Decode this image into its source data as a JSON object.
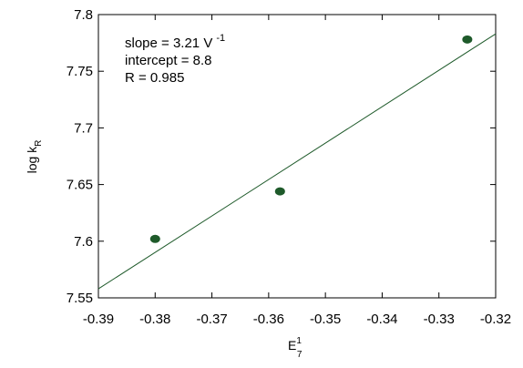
{
  "chart_data": {
    "type": "scatter",
    "title": "",
    "xlabel": {
      "main": "E",
      "sup": "1",
      "sub": "7"
    },
    "ylabel": {
      "main": "log k",
      "sub": "R"
    },
    "xlim": [
      -0.39,
      -0.32
    ],
    "ylim": [
      7.55,
      7.8
    ],
    "x_ticks": [
      -0.39,
      -0.38,
      -0.37,
      -0.36,
      -0.35,
      -0.34,
      -0.33,
      -0.32
    ],
    "x_tick_labels": [
      "-0.39",
      "-0.38",
      "-0.37",
      "-0.36",
      "-0.35",
      "-0.34",
      "-0.33",
      "-0.32"
    ],
    "y_ticks": [
      7.55,
      7.6,
      7.65,
      7.7,
      7.75,
      7.8
    ],
    "y_tick_labels": [
      "7.55",
      "7.6",
      "7.65",
      "7.7",
      "7.75",
      "7.8"
    ],
    "points": [
      {
        "x": -0.38,
        "y": 7.602
      },
      {
        "x": -0.358,
        "y": 7.644
      },
      {
        "x": -0.325,
        "y": 7.778
      }
    ],
    "fit_line": [
      {
        "x": -0.39,
        "y": 7.558
      },
      {
        "x": -0.32,
        "y": 7.783
      }
    ],
    "annotations": [
      {
        "text": "slope = 3.21 V",
        "sup": "-1"
      },
      {
        "text": "intercept = 8.8"
      },
      {
        "text": "R = 0.985"
      }
    ],
    "grid": false,
    "colors": {
      "points": "#1e5a2a",
      "line": "#1e5a2a",
      "axes": "#000000"
    }
  }
}
